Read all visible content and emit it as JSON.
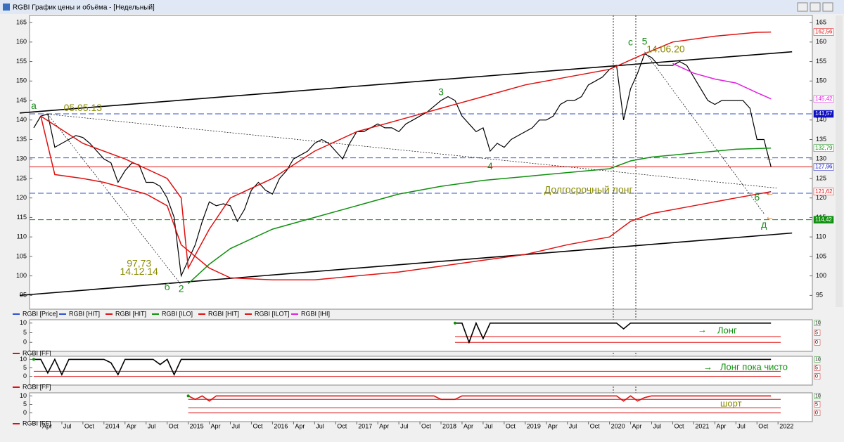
{
  "header": {
    "title": "RGBI График цены и объёма - [Недельный]"
  },
  "chart_data": {
    "type": "line",
    "ylim": [
      92,
      167
    ],
    "yticks": [
      95,
      100,
      105,
      110,
      115,
      120,
      125,
      130,
      135,
      140,
      145,
      150,
      155,
      160,
      165
    ],
    "xticks": [
      {
        "value": "2013-04",
        "label": "Apr"
      },
      {
        "value": "2013-07",
        "label": "Jul"
      },
      {
        "value": "2013-10",
        "label": "Oct"
      },
      {
        "value": "2014-01",
        "label": "2014"
      },
      {
        "value": "2014-04",
        "label": "Apr"
      },
      {
        "value": "2014-07",
        "label": "Jul"
      },
      {
        "value": "2014-10",
        "label": "Oct"
      },
      {
        "value": "2015-01",
        "label": "2015"
      },
      {
        "value": "2015-04",
        "label": "Apr"
      },
      {
        "value": "2015-07",
        "label": "Jul"
      },
      {
        "value": "2015-10",
        "label": "Oct"
      },
      {
        "value": "2016-01",
        "label": "2016"
      },
      {
        "value": "2016-04",
        "label": "Apr"
      },
      {
        "value": "2016-07",
        "label": "Jul"
      },
      {
        "value": "2016-10",
        "label": "Oct"
      },
      {
        "value": "2017-01",
        "label": "2017"
      },
      {
        "value": "2017-04",
        "label": "Apr"
      },
      {
        "value": "2017-07",
        "label": "Jul"
      },
      {
        "value": "2017-10",
        "label": "Oct"
      },
      {
        "value": "2018-01",
        "label": "2018"
      },
      {
        "value": "2018-04",
        "label": "Apr"
      },
      {
        "value": "2018-07",
        "label": "Jul"
      },
      {
        "value": "2018-10",
        "label": "Oct"
      },
      {
        "value": "2019-01",
        "label": "2019"
      },
      {
        "value": "2019-04",
        "label": "Apr"
      },
      {
        "value": "2019-07",
        "label": "Jul"
      },
      {
        "value": "2019-10",
        "label": "Oct"
      },
      {
        "value": "2020-01",
        "label": "2020"
      },
      {
        "value": "2020-04",
        "label": "Apr"
      },
      {
        "value": "2020-07",
        "label": "Jul"
      },
      {
        "value": "2020-10",
        "label": "Oct"
      },
      {
        "value": "2021-01",
        "label": "2021"
      },
      {
        "value": "2021-04",
        "label": "Apr"
      },
      {
        "value": "2021-07",
        "label": "Jul"
      },
      {
        "value": "2021-10",
        "label": "Oct"
      },
      {
        "value": "2022-01",
        "label": "2022"
      }
    ],
    "series": [
      {
        "name": "RGBI [Price]",
        "color": "#000000",
        "legend_color": "#3050d0",
        "x": [
          "2013-03",
          "2013-04",
          "2013-05",
          "2013-06",
          "2013-07",
          "2013-08",
          "2013-09",
          "2013-10",
          "2013-11",
          "2013-12",
          "2014-01",
          "2014-02",
          "2014-03",
          "2014-04",
          "2014-05",
          "2014-06",
          "2014-07",
          "2014-08",
          "2014-09",
          "2014-10",
          "2014-11",
          "2014-12",
          "2015-01",
          "2015-02",
          "2015-03",
          "2015-04",
          "2015-05",
          "2015-06",
          "2015-07",
          "2015-08",
          "2015-09",
          "2015-10",
          "2015-11",
          "2015-12",
          "2016-01",
          "2016-02",
          "2016-03",
          "2016-04",
          "2016-05",
          "2016-06",
          "2016-07",
          "2016-08",
          "2016-09",
          "2016-10",
          "2016-11",
          "2016-12",
          "2017-01",
          "2017-02",
          "2017-03",
          "2017-04",
          "2017-05",
          "2017-06",
          "2017-07",
          "2017-08",
          "2017-09",
          "2017-10",
          "2017-11",
          "2017-12",
          "2018-01",
          "2018-02",
          "2018-03",
          "2018-04",
          "2018-05",
          "2018-06",
          "2018-07",
          "2018-08",
          "2018-09",
          "2018-10",
          "2018-11",
          "2018-12",
          "2019-01",
          "2019-02",
          "2019-03",
          "2019-04",
          "2019-05",
          "2019-06",
          "2019-07",
          "2019-08",
          "2019-09",
          "2019-10",
          "2019-11",
          "2019-12",
          "2020-01",
          "2020-02",
          "2020-03",
          "2020-04",
          "2020-05",
          "2020-06",
          "2020-07",
          "2020-08",
          "2020-09",
          "2020-10",
          "2020-11",
          "2020-12",
          "2021-01",
          "2021-02",
          "2021-03",
          "2021-04",
          "2021-05",
          "2021-06",
          "2021-07",
          "2021-08",
          "2021-09",
          "2021-10",
          "2021-11",
          "2021-12"
        ],
        "values": [
          138,
          141,
          141.5,
          133,
          134,
          135,
          136,
          135.5,
          134,
          132,
          130,
          129,
          124,
          127,
          129,
          128.5,
          124,
          124,
          123,
          120,
          115,
          100,
          104,
          108,
          114,
          119,
          118,
          118.5,
          118,
          114,
          117,
          122,
          124,
          122,
          121,
          125,
          127,
          130,
          131,
          132,
          134,
          135,
          134,
          132,
          130,
          134,
          137,
          137,
          138,
          139,
          138,
          138,
          137,
          139,
          140,
          141,
          142,
          143.5,
          145,
          146,
          145,
          141,
          139,
          137,
          138,
          132,
          134,
          133,
          135,
          136,
          137,
          138,
          140,
          140,
          141,
          144,
          145,
          145,
          146,
          149,
          150,
          151,
          153,
          154,
          140,
          148,
          152,
          157,
          156,
          154,
          154,
          154,
          155,
          154,
          151,
          148,
          145,
          144,
          145,
          145,
          145,
          145,
          143,
          135,
          135,
          128
        ]
      },
      {
        "name": "RGBI [HIT]",
        "color": "#3050d0",
        "x": [],
        "values": []
      },
      {
        "name": "RGBI [HIT]",
        "color": "#e01010",
        "x": [
          "2013-04",
          "2013-10",
          "2014-04",
          "2014-10",
          "2014-12",
          "2015-01",
          "2015-04",
          "2015-07",
          "2016-01",
          "2016-07",
          "2017-01",
          "2017-07",
          "2018-01",
          "2018-07",
          "2019-01",
          "2019-07",
          "2020-01",
          "2020-06",
          "2020-10",
          "2021-04",
          "2021-10",
          "2021-12"
        ],
        "values": [
          141,
          134,
          130,
          125,
          120,
          102,
          112,
          120,
          125,
          132,
          137,
          140,
          143,
          146,
          149,
          151,
          153,
          157,
          160,
          161.5,
          162.5,
          162.56
        ]
      },
      {
        "name": "RGBI [ILO]",
        "color": "#109010",
        "x": [
          "2015-01",
          "2015-04",
          "2015-07",
          "2016-01",
          "2016-07",
          "2017-01",
          "2017-07",
          "2018-01",
          "2018-07",
          "2019-01",
          "2019-07",
          "2020-01",
          "2020-04",
          "2020-07",
          "2021-01",
          "2021-07",
          "2021-12"
        ],
        "values": [
          98,
          103,
          107,
          112,
          115,
          118,
          121,
          123,
          124.5,
          125.5,
          126.5,
          127.5,
          129.5,
          130.5,
          131.5,
          132.5,
          132.79
        ]
      },
      {
        "name": "RGBI [HIT]",
        "color": "#e01010",
        "x": [
          "2013-04",
          "2013-06",
          "2013-10",
          "2014-01",
          "2014-07",
          "2014-10",
          "2014-12",
          "2015-04",
          "2015-07",
          "2016-01",
          "2016-07",
          "2017-01",
          "2017-07",
          "2018-01",
          "2018-07",
          "2019-01",
          "2019-07",
          "2020-01",
          "2020-04",
          "2020-07",
          "2021-01",
          "2021-07",
          "2021-12"
        ],
        "values": [
          141,
          126,
          125,
          124,
          121,
          118,
          108,
          102,
          99.5,
          99,
          99,
          100,
          101,
          102.5,
          104,
          105.5,
          108,
          110,
          114,
          116,
          118,
          120,
          121.62
        ]
      },
      {
        "name": "RGBI [ILOT]",
        "color": "#e01010",
        "x": [],
        "values": []
      },
      {
        "name": "RGBI [IHI]",
        "color": "#e020e0",
        "x": [
          "2020-10",
          "2021-01",
          "2021-04",
          "2021-07",
          "2021-10",
          "2021-12"
        ],
        "values": [
          154.5,
          152,
          150.5,
          149.5,
          147,
          145.42
        ]
      }
    ],
    "levels": [
      {
        "value": 141.57,
        "color": "#3050d0",
        "dash": true
      },
      {
        "value": 130.3,
        "color": "#3050d0",
        "dash": true
      },
      {
        "value": 121.2,
        "color": "#3050d0",
        "dash": true
      },
      {
        "value": 127.96,
        "color": "#e01010",
        "dash": false
      },
      {
        "value": 114.42,
        "color": "#109010",
        "dash": true
      }
    ],
    "trendlines": [
      {
        "x": [
          "2013-01",
          "2022-03"
        ],
        "y": [
          141.8,
          157.5
        ],
        "dotted": false
      },
      {
        "x": [
          "2013-01",
          "2022-03"
        ],
        "y": [
          95,
          111
        ],
        "dotted": false
      },
      {
        "x": [
          "2013-05",
          "2022-01"
        ],
        "y": [
          141.5,
          122.5
        ],
        "dotted": true
      },
      {
        "x": [
          "2013-05",
          "2014-12"
        ],
        "y": [
          141.5,
          97.7
        ],
        "dotted": true
      },
      {
        "x": [
          "2020-06",
          "2021-11"
        ],
        "y": [
          157.5,
          116
        ],
        "dotted": true
      }
    ],
    "right_labels": [
      {
        "value": 162.56,
        "label": "162,56",
        "color": "#e01010",
        "bg": "#ffffff"
      },
      {
        "value": 145.42,
        "label": "145,42",
        "color": "#e020e0",
        "bg": "#ffffff"
      },
      {
        "value": 141.57,
        "label": "141,57",
        "color": "#ffffff",
        "bg": "#1010c0"
      },
      {
        "value": 132.79,
        "label": "132,79",
        "color": "#109010",
        "bg": "#ffffff"
      },
      {
        "value": 127.96,
        "label": "127,96",
        "color": "#1010c0",
        "bg": "#ffffff"
      },
      {
        "value": 121.62,
        "label": "121,62",
        "color": "#e01010",
        "bg": "#ffffff"
      },
      {
        "value": 114.42,
        "label": "114,42",
        "color": "#ffffff",
        "bg": "#109010"
      }
    ],
    "annotations": [
      {
        "text": "а",
        "x": "2013-03",
        "y": 143.5,
        "color": "#1a8a1a"
      },
      {
        "text": "05.05.13",
        "x": "2013-10",
        "y": 143,
        "color": "#8a8a00"
      },
      {
        "text": "3",
        "x": "2018-01",
        "y": 147,
        "color": "#1a8a1a"
      },
      {
        "text": "4",
        "x": "2018-08",
        "y": 128,
        "color": "#1a8a1a"
      },
      {
        "text": "с",
        "x": "2020-04",
        "y": 159.8,
        "color": "#1a8a1a"
      },
      {
        "text": "5",
        "x": "2020-06",
        "y": 160,
        "color": "#1a8a1a"
      },
      {
        "text": "14.06.20",
        "x": "2020-09",
        "y": 158,
        "color": "#8a8a00"
      },
      {
        "text": "Долгосрочный лонг",
        "x": "2019-10",
        "y": 122,
        "color": "#8a8a00"
      },
      {
        "text": "6",
        "x": "2021-10",
        "y": 120,
        "color": "#1a8a1a"
      },
      {
        "text": "д",
        "x": "2021-11",
        "y": 113,
        "color": "#1a8a1a"
      },
      {
        "text": "97,73",
        "x": "2014-06",
        "y": 103,
        "color": "#8a8a00"
      },
      {
        "text": "14.12.14",
        "x": "2014-06",
        "y": 101,
        "color": "#8a8a00"
      },
      {
        "text": "б",
        "x": "2014-10",
        "y": 97,
        "color": "#1a8a1a"
      },
      {
        "text": "2",
        "x": "2014-12",
        "y": 96.5,
        "color": "#1a8a1a"
      }
    ],
    "panels": [
      {
        "label": "Лонг",
        "legend": "RGBI [FF]",
        "color": "#000000",
        "ylim": [
          -1,
          11
        ],
        "yticks": [
          0,
          5,
          10
        ],
        "levels": [
          3,
          0
        ],
        "x": [
          "2018-03",
          "2018-04",
          "2018-05",
          "2018-06",
          "2018-07",
          "2018-08",
          "2020-02",
          "2020-03",
          "2020-04",
          "2021-12"
        ],
        "values": [
          10,
          10,
          0,
          10,
          2,
          10,
          10,
          7,
          10,
          10
        ]
      },
      {
        "label": "Лонг пока чисто",
        "legend": "RGBI [FF]",
        "color": "#000000",
        "ylim": [
          -1,
          11
        ],
        "yticks": [
          0,
          5,
          10
        ],
        "levels": [
          3,
          0
        ],
        "x": [
          "2013-03",
          "2013-04",
          "2013-05",
          "2013-06",
          "2013-07",
          "2013-08",
          "2014-01",
          "2014-02",
          "2014-03",
          "2014-04",
          "2014-08",
          "2014-09",
          "2014-10",
          "2014-11",
          "2014-12",
          "2021-12"
        ],
        "values": [
          10,
          10,
          2,
          10,
          1,
          10,
          10,
          8,
          1,
          10,
          10,
          7,
          10,
          1,
          10,
          10
        ]
      },
      {
        "label": "шорт",
        "legend": "RGBI [FF]",
        "color": "#e01010",
        "ylim": [
          -1,
          11
        ],
        "yticks": [
          0,
          5,
          10
        ],
        "levels": [
          8,
          3,
          0
        ],
        "x": [
          "2015-01",
          "2015-02",
          "2015-03",
          "2015-04",
          "2015-05",
          "2017-12",
          "2018-01",
          "2018-03",
          "2018-04",
          "2020-02",
          "2020-03",
          "2020-04",
          "2020-05",
          "2020-06",
          "2020-07",
          "2021-12"
        ],
        "values": [
          10,
          8,
          10,
          7,
          10,
          10,
          8,
          8,
          10,
          10,
          7,
          10,
          7,
          9,
          10,
          10
        ]
      }
    ]
  }
}
